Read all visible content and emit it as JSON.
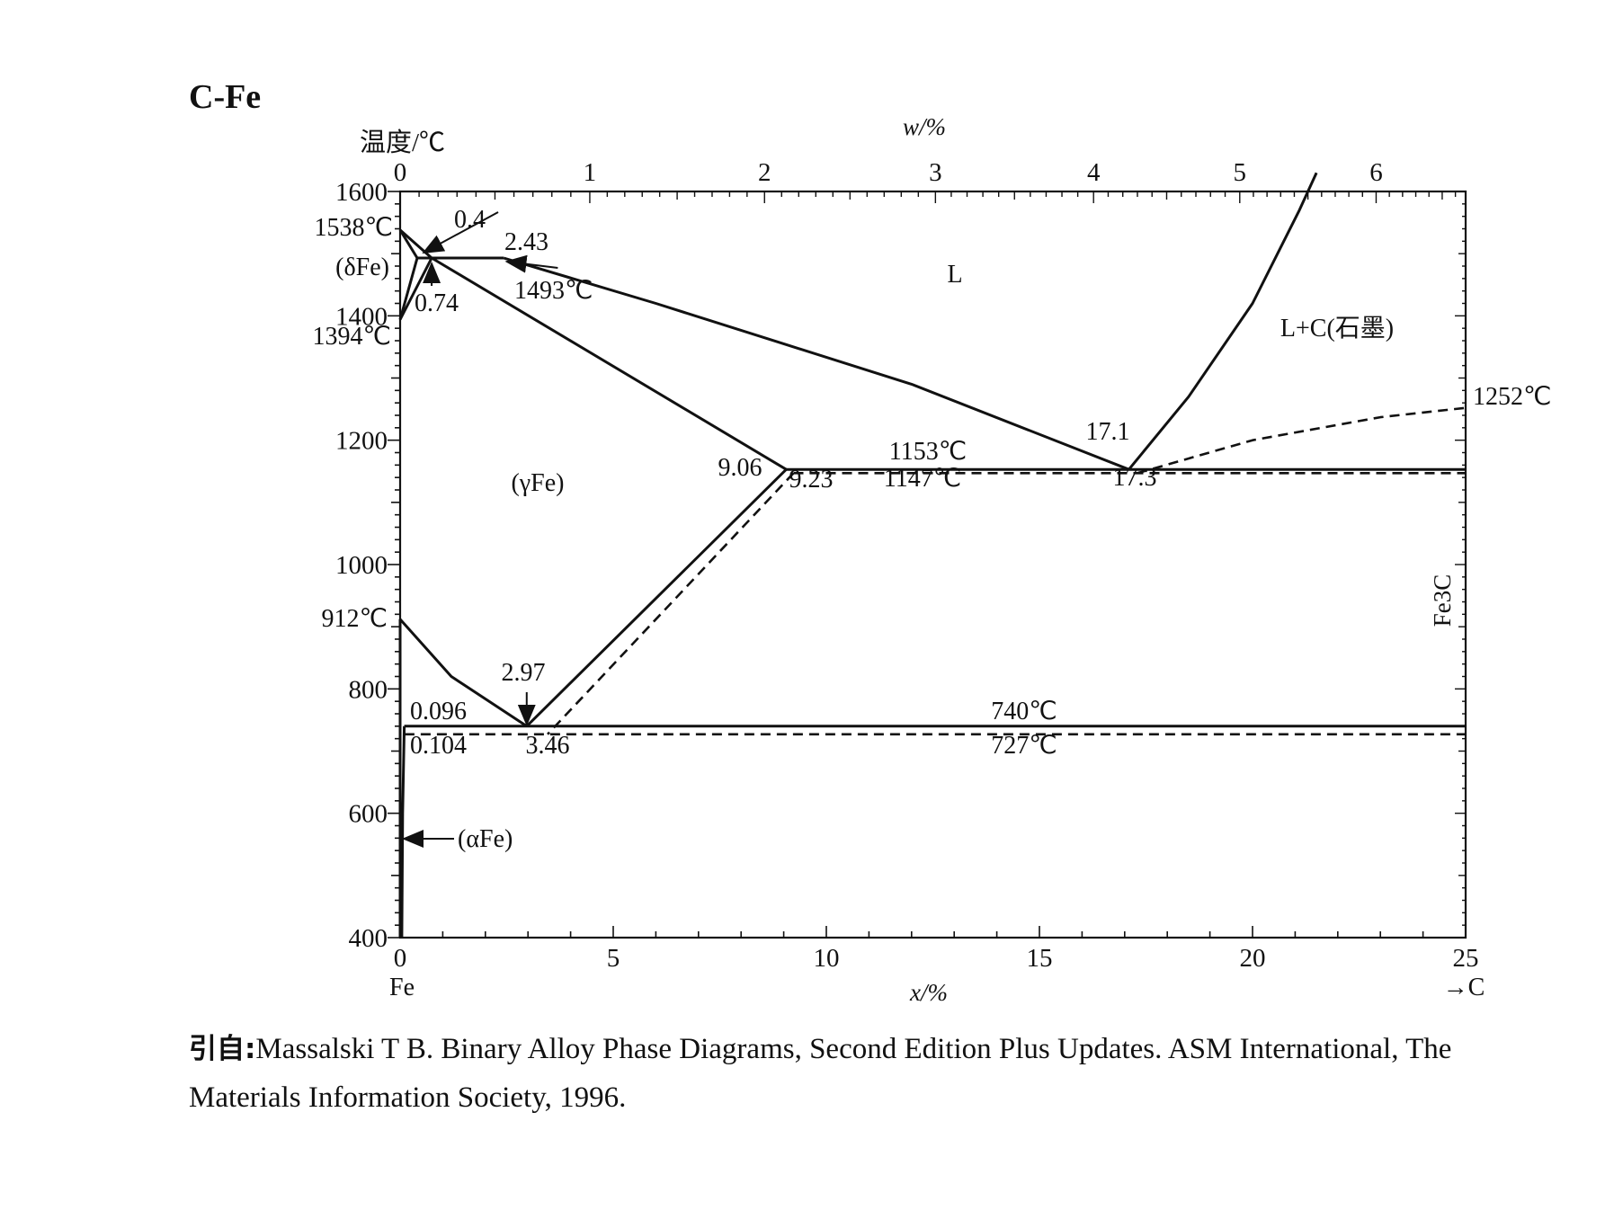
{
  "title": "C-Fe",
  "citation": {
    "prefix": "引自:",
    "text_line1": "Massalski T B. Binary Alloy Phase Diagrams, Second Edition Plus Updates. ASM International, The",
    "text_line2": "Materials Information Society, 1996."
  },
  "chart_data": {
    "type": "line",
    "title": "C-Fe",
    "ylabel": "温度/℃",
    "xlabel": "x/%",
    "x2label": "w/%",
    "xlim": [
      0,
      25
    ],
    "ylim": [
      400,
      1600
    ],
    "x_ticks": [
      "0",
      "5",
      "10",
      "15",
      "20",
      "25"
    ],
    "y_ticks": [
      "400",
      "600",
      "800",
      "1000",
      "1200",
      "1400",
      "1600"
    ],
    "x2_ticks": [
      {
        "label": "0",
        "x_at_pct": 0
      },
      {
        "label": "1",
        "x_at_pct": 4.45
      },
      {
        "label": "2",
        "x_at_pct": 8.55
      },
      {
        "label": "3",
        "x_at_pct": 12.56
      },
      {
        "label": "4",
        "x_at_pct": 16.27
      },
      {
        "label": "5",
        "x_at_pct": 19.7
      },
      {
        "label": "6",
        "x_at_pct": 22.9
      }
    ],
    "x_endpoint_labels": {
      "left": "Fe",
      "right": "→C"
    },
    "right_side_label": "Fe3C",
    "series": [
      {
        "style": "solid",
        "points": [
          [
            0,
            1538
          ],
          [
            0.74,
            1493
          ]
        ]
      },
      {
        "style": "solid",
        "points": [
          [
            0,
            1538
          ],
          [
            0.4,
            1493
          ]
        ]
      },
      {
        "style": "solid",
        "points": [
          [
            0,
            1394
          ],
          [
            0.4,
            1493
          ]
        ]
      },
      {
        "style": "solid",
        "points": [
          [
            0,
            1394
          ],
          [
            0.74,
            1493
          ]
        ]
      },
      {
        "style": "solid",
        "points": [
          [
            0.4,
            1493
          ],
          [
            2.43,
            1493
          ]
        ]
      },
      {
        "style": "solid",
        "points": [
          [
            0.74,
            1493
          ],
          [
            9.06,
            1153
          ]
        ]
      },
      {
        "style": "solid",
        "points": [
          [
            2.43,
            1493
          ],
          [
            6,
            1420
          ],
          [
            12,
            1290
          ],
          [
            17.1,
            1153
          ]
        ]
      },
      {
        "style": "solid",
        "points": [
          [
            17.1,
            1153
          ],
          [
            18.5,
            1270
          ],
          [
            20,
            1420
          ],
          [
            21.1,
            1570
          ],
          [
            21.5,
            1630
          ]
        ]
      },
      {
        "style": "solid",
        "points": [
          [
            9.06,
            1153
          ],
          [
            17.1,
            1153
          ],
          [
            25,
            1153
          ]
        ]
      },
      {
        "style": "solid",
        "points": [
          [
            9.06,
            1153
          ],
          [
            2.97,
            740
          ]
        ]
      },
      {
        "style": "solid",
        "points": [
          [
            0,
            912
          ],
          [
            1.2,
            820
          ],
          [
            2.97,
            740
          ]
        ]
      },
      {
        "style": "solid",
        "points": [
          [
            0.096,
            740
          ],
          [
            25,
            740
          ]
        ]
      },
      {
        "style": "solid",
        "points": [
          [
            0,
            912
          ],
          [
            0,
            400
          ]
        ]
      },
      {
        "style": "solid",
        "points": [
          [
            0.096,
            740
          ],
          [
            0.06,
            600
          ],
          [
            0.04,
            400
          ]
        ]
      },
      {
        "style": "dashed",
        "points": [
          [
            9.23,
            1147
          ],
          [
            25,
            1147
          ]
        ]
      },
      {
        "style": "dashed",
        "points": [
          [
            9.23,
            1147
          ],
          [
            3.46,
            727
          ]
        ]
      },
      {
        "style": "dashed",
        "points": [
          [
            0.104,
            727
          ],
          [
            25,
            727
          ]
        ]
      },
      {
        "style": "dashed",
        "points": [
          [
            17.3,
            1147
          ],
          [
            20,
            1200
          ],
          [
            23,
            1237
          ],
          [
            25,
            1252
          ]
        ]
      }
    ],
    "annotations": [
      {
        "text": "1538℃",
        "x": 0,
        "y": 1538
      },
      {
        "text": "0.4",
        "x": 0.4,
        "y": 1493
      },
      {
        "text": "2.43",
        "x": 2.43,
        "y": 1493
      },
      {
        "text": "(δFe)",
        "x": 0,
        "y": 1460
      },
      {
        "text": "1493℃",
        "x": 2.1,
        "y": 1493
      },
      {
        "text": "0.74",
        "x": 0.74,
        "y": 1493
      },
      {
        "text": "1394℃",
        "x": 0,
        "y": 1394
      },
      {
        "text": "L",
        "x": 13,
        "y": 1380
      },
      {
        "text": "L+C(石墨)",
        "x": 22,
        "y": 1300
      },
      {
        "text": "1252℃",
        "x": 25,
        "y": 1252
      },
      {
        "text": "17.1",
        "x": 17.1,
        "y": 1153
      },
      {
        "text": "17.3",
        "x": 17.3,
        "y": 1147
      },
      {
        "text": "1153℃",
        "x": 12.3,
        "y": 1153
      },
      {
        "text": "1147℃",
        "x": 12.3,
        "y": 1147
      },
      {
        "text": "9.06",
        "x": 9.06,
        "y": 1153
      },
      {
        "text": "9.23",
        "x": 9.23,
        "y": 1147
      },
      {
        "text": "(γFe)",
        "x": 3.2,
        "y": 1100
      },
      {
        "text": "912℃",
        "x": 0,
        "y": 912
      },
      {
        "text": "2.97",
        "x": 2.97,
        "y": 740
      },
      {
        "text": "0.096",
        "x": 0.096,
        "y": 740
      },
      {
        "text": "0.104",
        "x": 0.104,
        "y": 727
      },
      {
        "text": "3.46",
        "x": 3.46,
        "y": 727
      },
      {
        "text": "740℃",
        "x": 14.5,
        "y": 740
      },
      {
        "text": "727℃",
        "x": 14.5,
        "y": 727
      },
      {
        "text": "(αFe)",
        "x": 0,
        "y": 555
      }
    ],
    "grid": false
  }
}
